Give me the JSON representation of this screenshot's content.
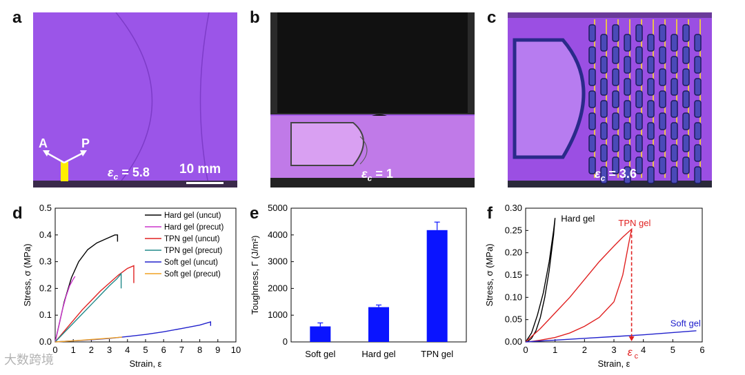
{
  "panels": {
    "a": {
      "letter": "a",
      "arrow_a": "A",
      "arrow_p": "P",
      "eps_sub": "c",
      "eps_val": "= 5.8",
      "scale": "10 mm"
    },
    "b": {
      "letter": "b",
      "eps_sub": "c",
      "eps_val": "= 1"
    },
    "c": {
      "letter": "c",
      "eps_sub": "c",
      "eps_val": "= 3.6"
    },
    "d": {
      "letter": "d"
    },
    "e": {
      "letter": "e"
    },
    "f": {
      "letter": "f"
    }
  },
  "colors": {
    "photo_bg": "#9b59e6",
    "hard": "#000000",
    "hard_pre": "#cc33cc",
    "tpn": "#e02020",
    "tpn_pre": "#208a8a",
    "soft": "#2020cc",
    "soft_pre": "#f0a020",
    "bar": "#0a14ff"
  },
  "watermark": "大数跨境",
  "chart_data": [
    {
      "panel": "d",
      "type": "line",
      "xlabel": "Strain, ε",
      "ylabel": "Stress, σ (MPa)",
      "xlim": [
        0,
        10
      ],
      "ylim": [
        0,
        0.5
      ],
      "xticks": [
        "0",
        "1",
        "2",
        "3",
        "4",
        "5",
        "6",
        "7",
        "8",
        "9",
        "10"
      ],
      "yticks": [
        "0.0",
        "0.1",
        "0.2",
        "0.3",
        "0.4",
        "0.5"
      ],
      "legend_position": "top-right",
      "series": [
        {
          "name": "Hard gel (uncut)",
          "color": "#000000",
          "x": [
            0,
            0.2,
            0.5,
            0.9,
            1.3,
            1.8,
            2.3,
            2.8,
            3.3,
            3.45,
            3.45
          ],
          "y": [
            0,
            0.06,
            0.15,
            0.24,
            0.3,
            0.345,
            0.37,
            0.385,
            0.4,
            0.4,
            0.375
          ]
        },
        {
          "name": "Hard gel (precut)",
          "color": "#cc33cc",
          "x": [
            0,
            0.2,
            0.4,
            0.6,
            0.8,
            1.0,
            1.1
          ],
          "y": [
            0,
            0.06,
            0.12,
            0.17,
            0.21,
            0.235,
            0.245
          ]
        },
        {
          "name": "TPN gel (uncut)",
          "color": "#e02020",
          "x": [
            0,
            0.5,
            1.0,
            1.5,
            2.0,
            2.5,
            3.0,
            3.5,
            4.0,
            4.35,
            4.35
          ],
          "y": [
            0,
            0.04,
            0.08,
            0.12,
            0.155,
            0.19,
            0.22,
            0.25,
            0.275,
            0.285,
            0.22
          ]
        },
        {
          "name": "TPN gel (precut)",
          "color": "#208a8a",
          "x": [
            0,
            0.5,
            1.0,
            1.5,
            2.0,
            2.5,
            3.0,
            3.4,
            3.65,
            3.65
          ],
          "y": [
            0,
            0.035,
            0.07,
            0.105,
            0.14,
            0.175,
            0.21,
            0.235,
            0.255,
            0.2
          ]
        },
        {
          "name": "Soft gel (uncut)",
          "color": "#2020cc",
          "x": [
            0,
            1,
            2,
            3,
            4,
            5,
            6,
            7,
            8,
            8.6,
            8.6
          ],
          "y": [
            0,
            0.004,
            0.008,
            0.013,
            0.02,
            0.028,
            0.038,
            0.05,
            0.063,
            0.075,
            0.06
          ]
        },
        {
          "name": "Soft gel (precut)",
          "color": "#f0a020",
          "x": [
            0,
            1,
            2,
            3,
            3.7
          ],
          "y": [
            0,
            0.004,
            0.009,
            0.014,
            0.018
          ]
        }
      ]
    },
    {
      "panel": "e",
      "type": "bar",
      "ylabel": "Toughness, Γ (J/m²)",
      "ylim": [
        0,
        5000
      ],
      "yticks": [
        "0",
        "1000",
        "2000",
        "3000",
        "4000",
        "5000"
      ],
      "categories": [
        "Soft gel",
        "Hard gel",
        "TPN gel"
      ],
      "values": [
        580,
        1300,
        4180
      ],
      "errors": [
        130,
        80,
        300
      ]
    },
    {
      "panel": "f",
      "type": "line",
      "xlabel": "Strain, ε",
      "ylabel": "Stress, σ (MPa)",
      "xlim": [
        0,
        6
      ],
      "ylim": [
        0,
        0.3
      ],
      "xticks": [
        "0",
        "1",
        "2",
        "3",
        "4",
        "5",
        "6"
      ],
      "yticks": [
        "0.00",
        "0.05",
        "0.10",
        "0.15",
        "0.20",
        "0.25",
        "0.30"
      ],
      "series": [
        {
          "name": "Hard gel",
          "color": "#000000",
          "x": [
            0,
            0.2,
            0.4,
            0.6,
            0.8,
            0.95,
            1.0,
            0.95,
            0.8,
            0.65,
            0.5,
            0.35,
            0.2,
            0.05
          ],
          "y": [
            0,
            0.02,
            0.06,
            0.11,
            0.18,
            0.25,
            0.278,
            0.24,
            0.16,
            0.1,
            0.055,
            0.025,
            0.008,
            0
          ]
        },
        {
          "name": "TPN gel",
          "color": "#e02020",
          "x": [
            0,
            0.5,
            1.0,
            1.5,
            2.0,
            2.5,
            3.0,
            3.3,
            3.6,
            3.5,
            3.3,
            3.0,
            2.5,
            2.0,
            1.5,
            1.0,
            0.5,
            0.1
          ],
          "y": [
            0,
            0.03,
            0.065,
            0.1,
            0.14,
            0.18,
            0.215,
            0.235,
            0.253,
            0.22,
            0.15,
            0.09,
            0.055,
            0.035,
            0.02,
            0.01,
            0.004,
            0
          ]
        },
        {
          "name": "Soft gel",
          "color": "#2020cc",
          "x": [
            0,
            1,
            2,
            3,
            4,
            5,
            5.8
          ],
          "y": [
            0,
            0.004,
            0.008,
            0.012,
            0.016,
            0.021,
            0.025
          ]
        }
      ],
      "annotations": {
        "eps_c": "ε",
        "eps_c_sub": "c",
        "eps_c_x": 3.6
      }
    }
  ]
}
